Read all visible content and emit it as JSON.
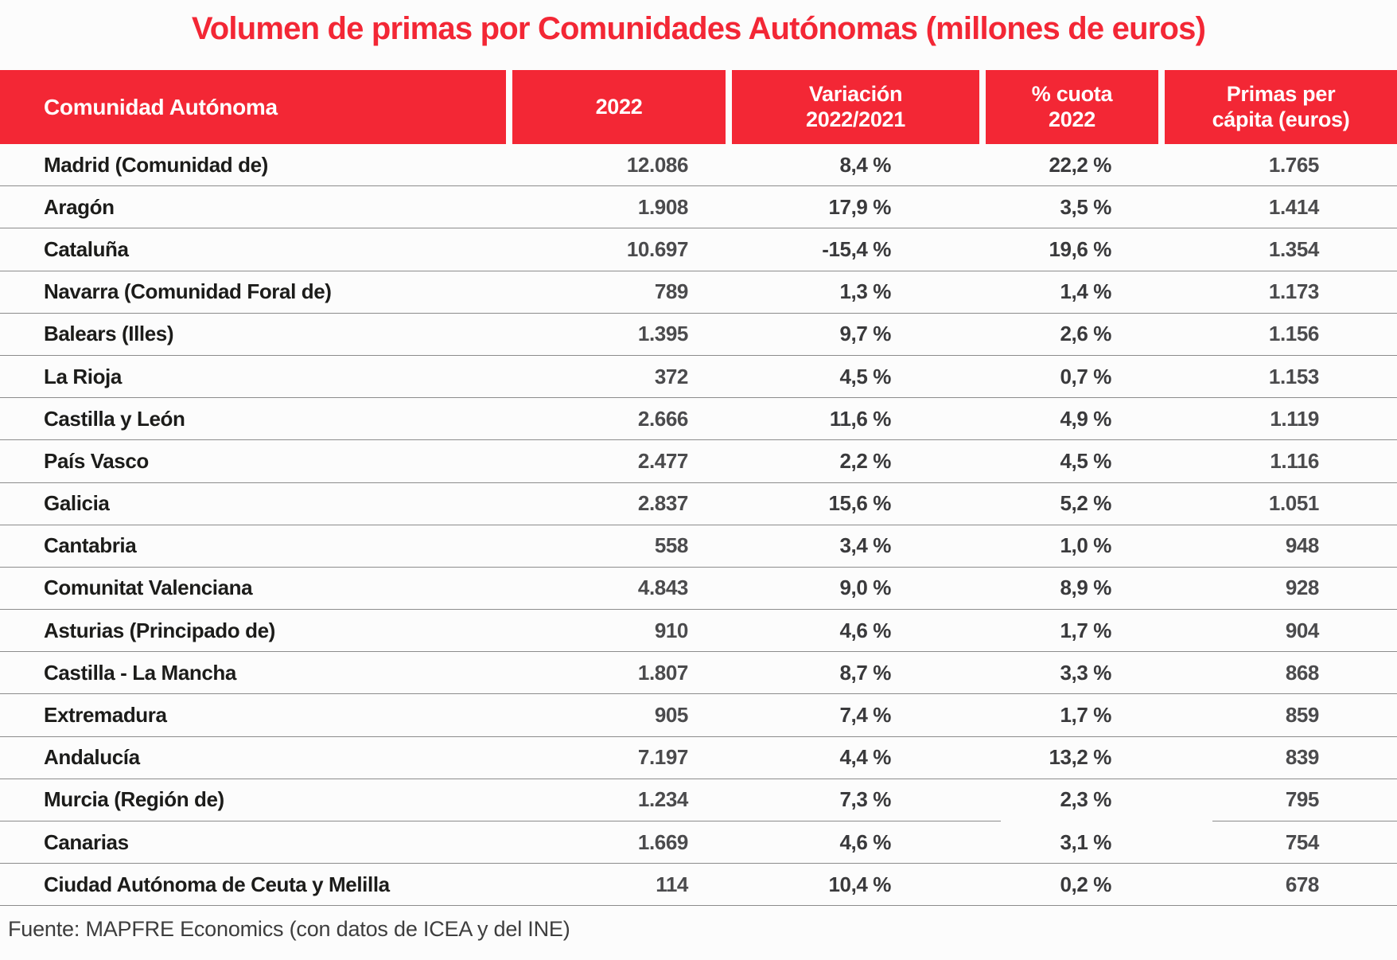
{
  "title": "Volumen de primas por Comunidades Autónomas (millones de euros)",
  "source_note": "Fuente: MAPFRE Economics (con datos de ICEA y del INE)",
  "colors": {
    "accent_red": "#F32735",
    "header_text": "#FFFFFF",
    "row_separator": "#8C8C8C",
    "region_text": "#1C1C1A",
    "number_text": "#4B4B4D",
    "background": "#FCFCFC"
  },
  "table": {
    "headers": [
      {
        "label": "Comunidad Autónoma"
      },
      {
        "label": "2022"
      },
      {
        "label": "Variación\n2022/2021"
      },
      {
        "label": "% cuota\n2022"
      },
      {
        "label": "Primas per\ncápita (euros)"
      }
    ],
    "rows": [
      [
        "Madrid (Comunidad de)",
        "12.086",
        "8,4 %",
        "22,2 %",
        "1.765"
      ],
      [
        "Aragón",
        "1.908",
        "17,9 %",
        "3,5 %",
        "1.414"
      ],
      [
        "Cataluña",
        "10.697",
        "-15,4 %",
        "19,6 %",
        "1.354"
      ],
      [
        "Navarra (Comunidad Foral de)",
        "789",
        "1,3 %",
        "1,4 %",
        "1.173"
      ],
      [
        "Balears (Illes)",
        "1.395",
        "9,7 %",
        "2,6 %",
        "1.156"
      ],
      [
        "La Rioja",
        "372",
        "4,5 %",
        "0,7 %",
        "1.153"
      ],
      [
        "Castilla y León",
        "2.666",
        "11,6 %",
        "4,9 %",
        "1.119"
      ],
      [
        "País Vasco",
        "2.477",
        "2,2 %",
        "4,5 %",
        "1.116"
      ],
      [
        "Galicia",
        "2.837",
        "15,6 %",
        "5,2 %",
        "1.051"
      ],
      [
        "Cantabria",
        "558",
        "3,4 %",
        "1,0 %",
        "948"
      ],
      [
        "Comunitat Valenciana",
        "4.843",
        "9,0 %",
        "8,9 %",
        "928"
      ],
      [
        "Asturias (Principado de)",
        "910",
        "4,6 %",
        "1,7 %",
        "904"
      ],
      [
        "Castilla - La Mancha",
        "1.807",
        "8,7 %",
        "3,3 %",
        "868"
      ],
      [
        "Extremadura",
        "905",
        "7,4 %",
        "1,7 %",
        "859"
      ],
      [
        "Andalucía",
        "7.197",
        "4,4 %",
        "13,2 %",
        "839"
      ],
      [
        "Murcia (Región de)",
        "1.234",
        "7,3 %",
        "2,3 %",
        "795"
      ],
      [
        "Canarias",
        "1.669",
        "4,6 %",
        "3,1 %",
        "754"
      ],
      [
        "Ciudad Autónoma de Ceuta y Melilla",
        "114",
        "10,4 %",
        "0,2 %",
        "678"
      ]
    ]
  },
  "chart_data": {
    "type": "table",
    "title": "Volumen de primas por Comunidades Autónomas (millones de euros)",
    "columns": [
      "Comunidad Autónoma",
      "2022",
      "Variación 2022/2021",
      "% cuota 2022",
      "Primas per cápita (euros)"
    ],
    "rows": [
      {
        "comunidad": "Madrid (Comunidad de)",
        "primas_2022_millones": 12086,
        "variacion_2022_2021_pct": 8.4,
        "cuota_2022_pct": 22.2,
        "primas_per_capita_euros": 1765
      },
      {
        "comunidad": "Aragón",
        "primas_2022_millones": 1908,
        "variacion_2022_2021_pct": 17.9,
        "cuota_2022_pct": 3.5,
        "primas_per_capita_euros": 1414
      },
      {
        "comunidad": "Cataluña",
        "primas_2022_millones": 10697,
        "variacion_2022_2021_pct": -15.4,
        "cuota_2022_pct": 19.6,
        "primas_per_capita_euros": 1354
      },
      {
        "comunidad": "Navarra (Comunidad Foral de)",
        "primas_2022_millones": 789,
        "variacion_2022_2021_pct": 1.3,
        "cuota_2022_pct": 1.4,
        "primas_per_capita_euros": 1173
      },
      {
        "comunidad": "Balears (Illes)",
        "primas_2022_millones": 1395,
        "variacion_2022_2021_pct": 9.7,
        "cuota_2022_pct": 2.6,
        "primas_per_capita_euros": 1156
      },
      {
        "comunidad": "La Rioja",
        "primas_2022_millones": 372,
        "variacion_2022_2021_pct": 4.5,
        "cuota_2022_pct": 0.7,
        "primas_per_capita_euros": 1153
      },
      {
        "comunidad": "Castilla y León",
        "primas_2022_millones": 2666,
        "variacion_2022_2021_pct": 11.6,
        "cuota_2022_pct": 4.9,
        "primas_per_capita_euros": 1119
      },
      {
        "comunidad": "País Vasco",
        "primas_2022_millones": 2477,
        "variacion_2022_2021_pct": 2.2,
        "cuota_2022_pct": 4.5,
        "primas_per_capita_euros": 1116
      },
      {
        "comunidad": "Galicia",
        "primas_2022_millones": 2837,
        "variacion_2022_2021_pct": 15.6,
        "cuota_2022_pct": 5.2,
        "primas_per_capita_euros": 1051
      },
      {
        "comunidad": "Cantabria",
        "primas_2022_millones": 558,
        "variacion_2022_2021_pct": 3.4,
        "cuota_2022_pct": 1.0,
        "primas_per_capita_euros": 948
      },
      {
        "comunidad": "Comunitat Valenciana",
        "primas_2022_millones": 4843,
        "variacion_2022_2021_pct": 9.0,
        "cuota_2022_pct": 8.9,
        "primas_per_capita_euros": 928
      },
      {
        "comunidad": "Asturias (Principado de)",
        "primas_2022_millones": 910,
        "variacion_2022_2021_pct": 4.6,
        "cuota_2022_pct": 1.7,
        "primas_per_capita_euros": 904
      },
      {
        "comunidad": "Castilla - La Mancha",
        "primas_2022_millones": 1807,
        "variacion_2022_2021_pct": 8.7,
        "cuota_2022_pct": 3.3,
        "primas_per_capita_euros": 868
      },
      {
        "comunidad": "Extremadura",
        "primas_2022_millones": 905,
        "variacion_2022_2021_pct": 7.4,
        "cuota_2022_pct": 1.7,
        "primas_per_capita_euros": 859
      },
      {
        "comunidad": "Andalucía",
        "primas_2022_millones": 7197,
        "variacion_2022_2021_pct": 4.4,
        "cuota_2022_pct": 13.2,
        "primas_per_capita_euros": 839
      },
      {
        "comunidad": "Murcia (Región de)",
        "primas_2022_millones": 1234,
        "variacion_2022_2021_pct": 7.3,
        "cuota_2022_pct": 2.3,
        "primas_per_capita_euros": 795
      },
      {
        "comunidad": "Canarias",
        "primas_2022_millones": 1669,
        "variacion_2022_2021_pct": 4.6,
        "cuota_2022_pct": 3.1,
        "primas_per_capita_euros": 754
      },
      {
        "comunidad": "Ciudad Autónoma de Ceuta y Melilla",
        "primas_2022_millones": 114,
        "variacion_2022_2021_pct": 10.4,
        "cuota_2022_pct": 0.2,
        "primas_per_capita_euros": 678
      }
    ]
  }
}
